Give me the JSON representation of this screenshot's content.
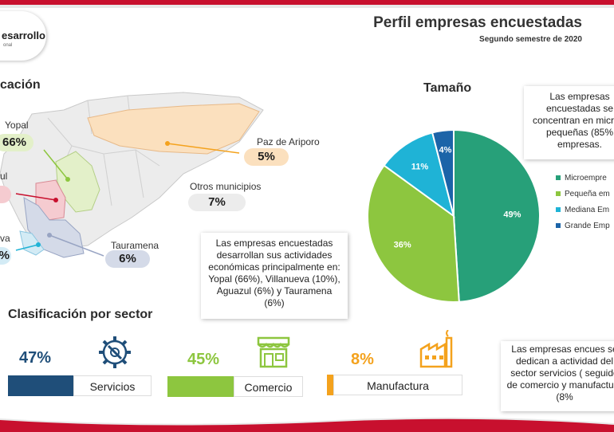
{
  "header": {
    "title": "Perfil empresas encuestadas",
    "subtitle": "Segundo semestre de 2020",
    "logo_text": "esarrollo",
    "logo_sub": "onal"
  },
  "location": {
    "title": "cación",
    "municipalities": [
      {
        "name": "Yopal",
        "pct": "66%"
      },
      {
        "name": "Paz de Ariporo",
        "pct": "5%"
      },
      {
        "name": "Otros municipios",
        "pct": "7%"
      },
      {
        "name": "ul",
        "pct": ""
      },
      {
        "name": "Tauramena",
        "pct": "6%"
      },
      {
        "name": "va",
        "pct": "%"
      }
    ],
    "note": "Las empresas encuestadas desarrollan sus actividades económicas principalmente en: Yopal (66%), Villanueva (10%), Aguazul (6%) y Tauramena (6%)"
  },
  "size": {
    "title": "Tamaño",
    "note": "Las empresas encuestadas se concentran en micro y pequeñas (85% empresas.",
    "legend": [
      "Microempre",
      "Pequeña em",
      "Mediana Em",
      "Grande Emp"
    ]
  },
  "sector": {
    "title": "Clasificación por sector",
    "items": [
      {
        "pct": "47%",
        "label": "Servicios",
        "value": 47
      },
      {
        "pct": "45%",
        "label": "Comercio",
        "value": 45
      },
      {
        "pct": "8%",
        "label": "Manufactura",
        "value": 8
      }
    ],
    "note": "Las empresas encues se dedican a actividad del sector servicios ( seguido de comercio y manufactura (8%"
  },
  "chart_data": {
    "type": "pie",
    "title": "Tamaño",
    "categories": [
      "Microempresa",
      "Pequeña empresa",
      "Mediana Empresa",
      "Grande Empresa"
    ],
    "values": [
      49,
      36,
      11,
      4
    ],
    "labels": [
      "49%",
      "36%",
      "11%",
      "4%"
    ],
    "colors": [
      "#27a079",
      "#8dc63f",
      "#1fb3d6",
      "#1c64a8"
    ],
    "legend": "right"
  },
  "colors": {
    "accent_red": "#c8102e",
    "servicios": "#1f4e79",
    "comercio": "#8dc63f",
    "manufactura": "#f4a21d",
    "map_fill": "#ececec",
    "yopal_fill": "#e3f0c9",
    "paz_fill": "#fbe0be",
    "aguazul_fill": "#f5cbd0",
    "tauramena_fill": "#d4dae8",
    "villanueva_fill": "#d3ebf5"
  },
  "icons": [
    "gear-wrench-icon",
    "store-icon",
    "factory-icon"
  ]
}
